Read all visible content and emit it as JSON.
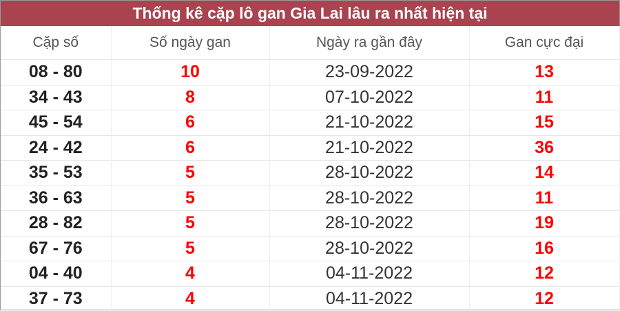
{
  "title": "Thống kê cặp lô gan Gia Lai lâu ra nhất hiện tại",
  "headers": [
    "Cặp số",
    "Số ngày gan",
    "Ngày ra gần đây",
    "Gan cực đại"
  ],
  "rows": [
    [
      "08 - 80",
      "10",
      "23-09-2022",
      "13"
    ],
    [
      "34 - 43",
      "8",
      "07-10-2022",
      "11"
    ],
    [
      "45 - 54",
      "6",
      "21-10-2022",
      "15"
    ],
    [
      "24 - 42",
      "6",
      "21-10-2022",
      "36"
    ],
    [
      "35 - 53",
      "5",
      "28-10-2022",
      "14"
    ],
    [
      "36 - 63",
      "5",
      "28-10-2022",
      "11"
    ],
    [
      "28 - 82",
      "5",
      "28-10-2022",
      "19"
    ],
    [
      "67 - 76",
      "5",
      "28-10-2022",
      "16"
    ],
    [
      "04 - 40",
      "4",
      "04-11-2022",
      "12"
    ],
    [
      "37 - 73",
      "4",
      "04-11-2022",
      "12"
    ]
  ],
  "colors": {
    "title_bg": "#a8434f",
    "highlight": "#ff0000"
  }
}
